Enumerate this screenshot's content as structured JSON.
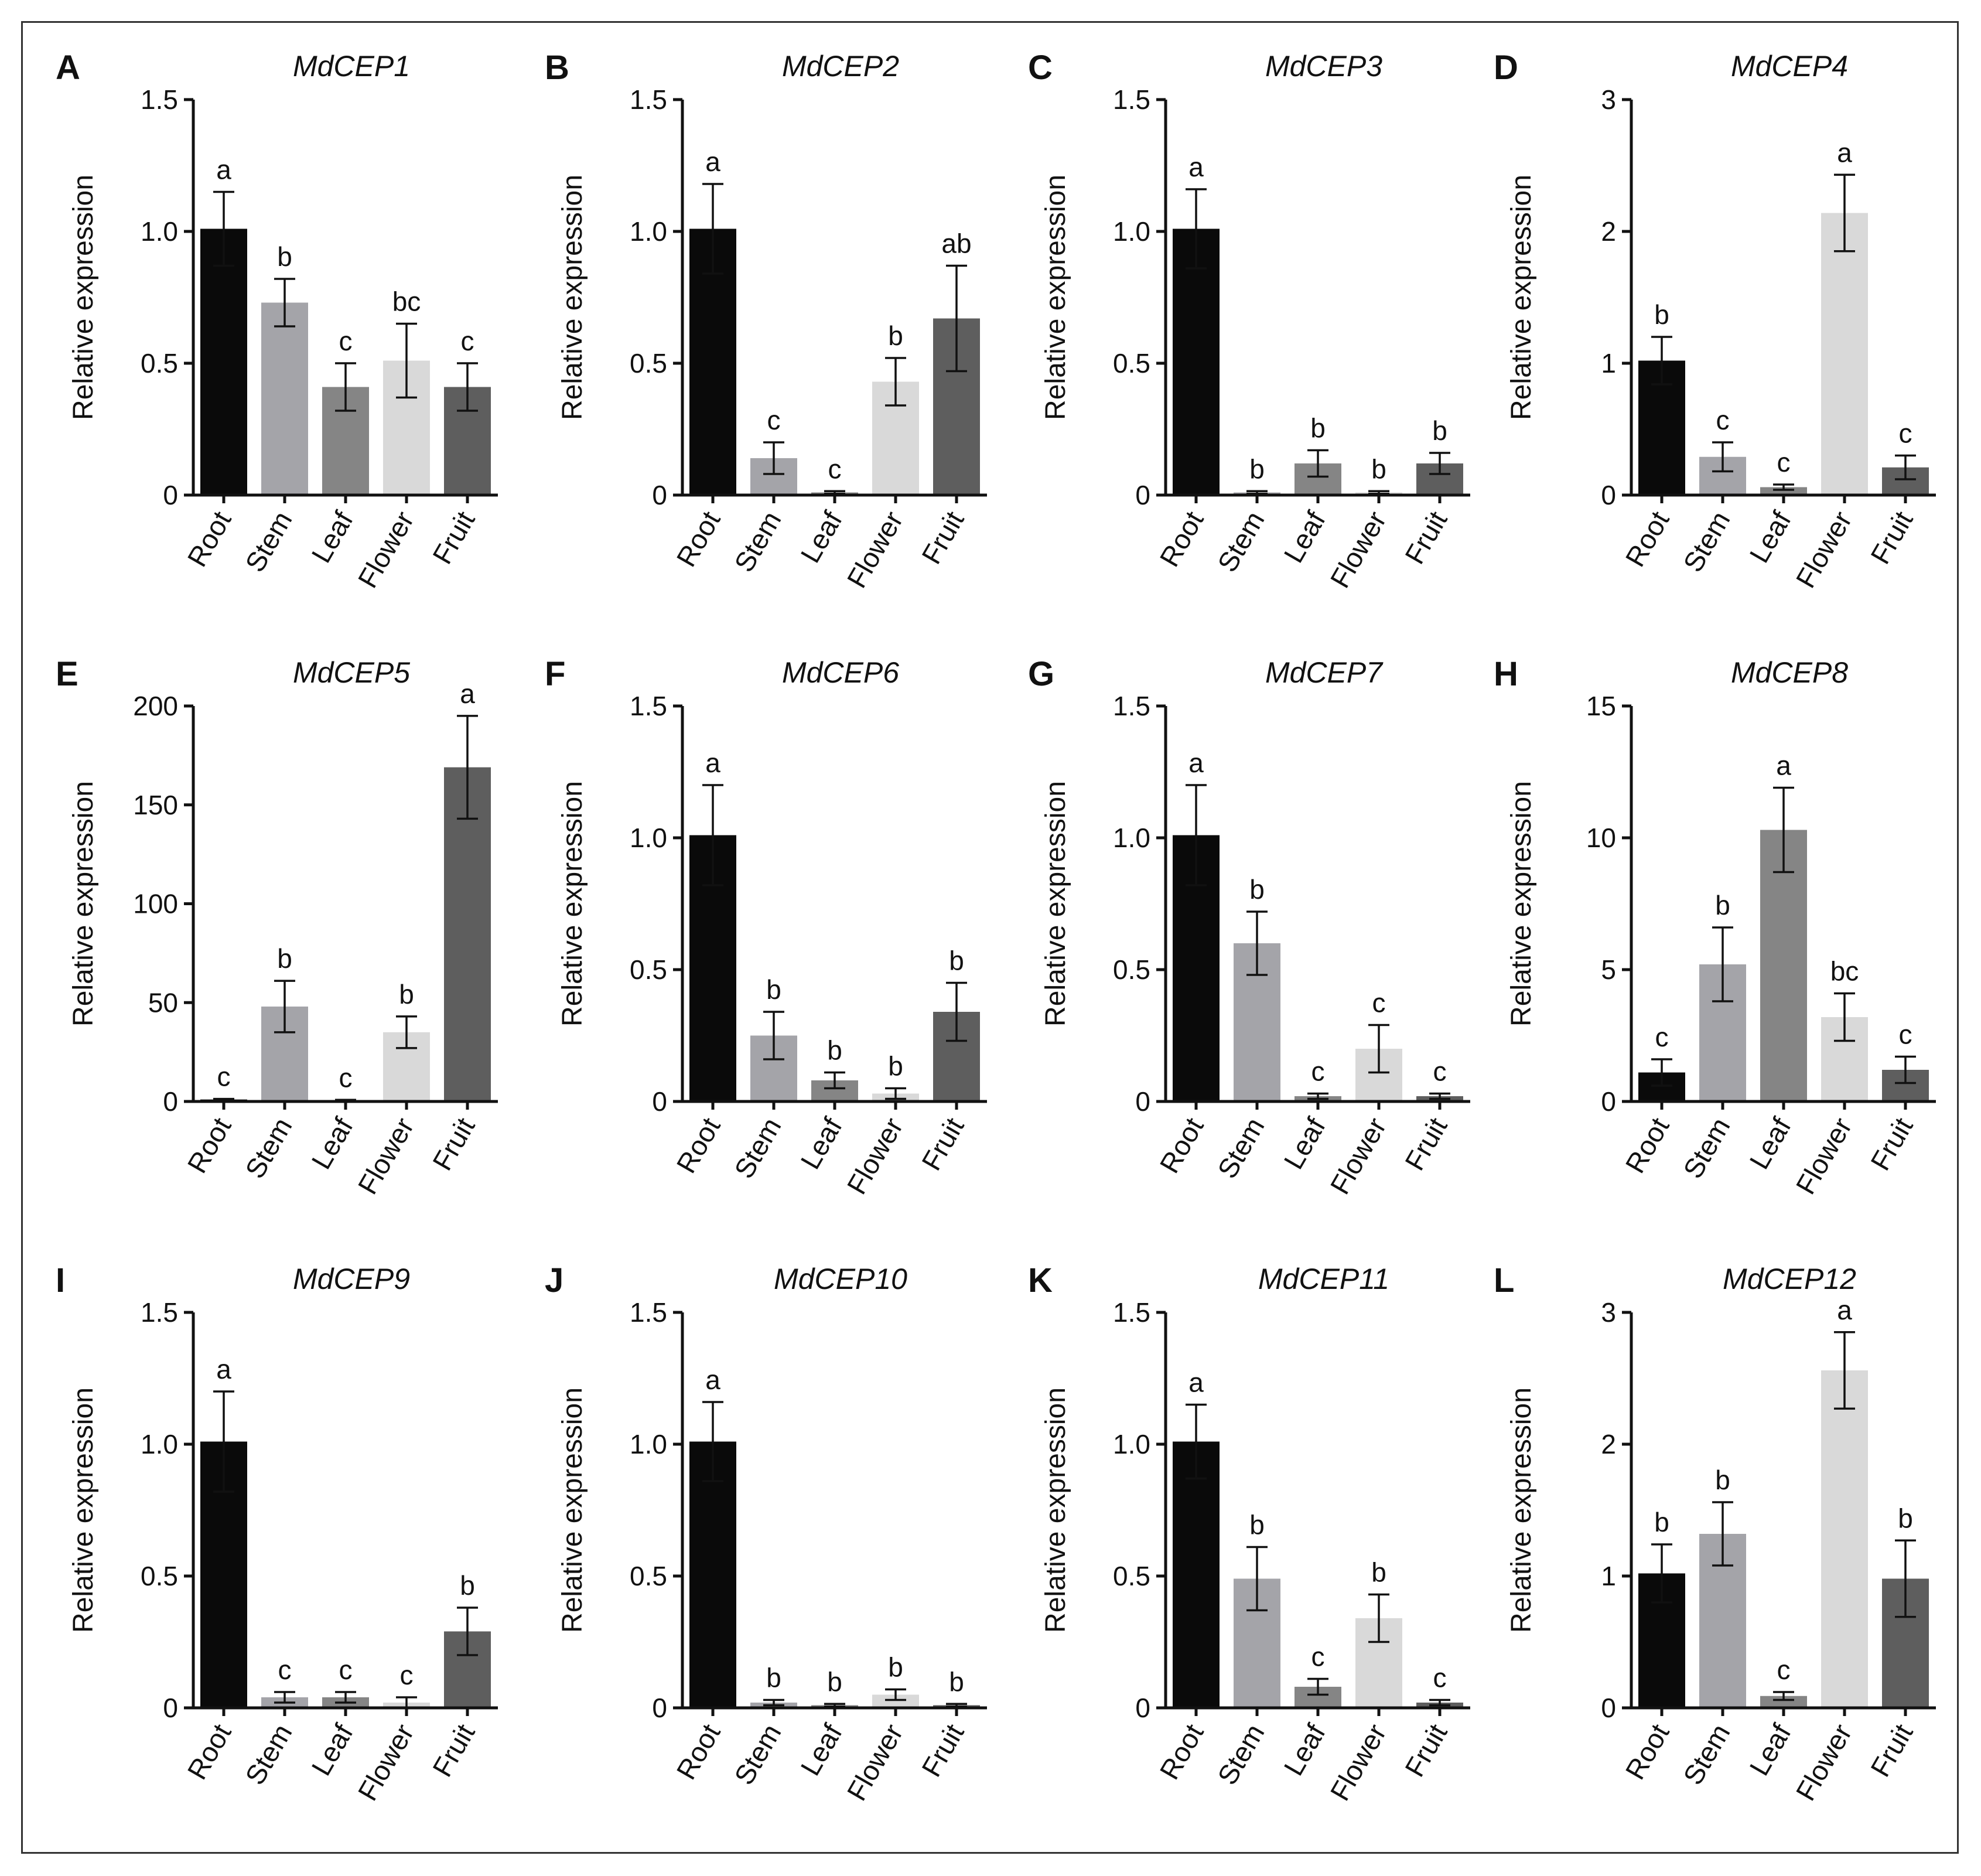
{
  "figure": {
    "category_colors": [
      "#0a0a0a",
      "#a4a4a9",
      "#858585",
      "#d9d9d9",
      "#5e5e5e"
    ]
  },
  "chart_data": [
    {
      "panel": "A",
      "type": "bar",
      "title": "MdCEP1",
      "ylabel": "Relative expression",
      "categories": [
        "Root",
        "Stem",
        "Leaf",
        "Flower",
        "Fruit"
      ],
      "values": [
        1.01,
        0.73,
        0.41,
        0.51,
        0.41
      ],
      "errors": [
        0.14,
        0.09,
        0.09,
        0.14,
        0.09
      ],
      "significance": [
        "a",
        "b",
        "c",
        "bc",
        "c"
      ],
      "ylim": [
        0,
        1.5
      ],
      "yticks": [
        0,
        0.5,
        1.0,
        1.5
      ],
      "ytick_labels": [
        "0",
        "0.5",
        "1.0",
        "1.5"
      ]
    },
    {
      "panel": "B",
      "type": "bar",
      "title": "MdCEP2",
      "ylabel": "Relative expression",
      "categories": [
        "Root",
        "Stem",
        "Leaf",
        "Flower",
        "Fruit"
      ],
      "values": [
        1.01,
        0.14,
        0.01,
        0.43,
        0.67
      ],
      "errors": [
        0.17,
        0.06,
        0.005,
        0.09,
        0.2
      ],
      "significance": [
        "a",
        "c",
        "c",
        "b",
        "ab"
      ],
      "ylim": [
        0,
        1.5
      ],
      "yticks": [
        0,
        0.5,
        1.0,
        1.5
      ],
      "ytick_labels": [
        "0",
        "0.5",
        "1.0",
        "1.5"
      ]
    },
    {
      "panel": "C",
      "type": "bar",
      "title": "MdCEP3",
      "ylabel": "Relative expression",
      "categories": [
        "Root",
        "Stem",
        "Leaf",
        "Flower",
        "Fruit"
      ],
      "values": [
        1.01,
        0.01,
        0.12,
        0.01,
        0.12
      ],
      "errors": [
        0.15,
        0.005,
        0.05,
        0.005,
        0.04
      ],
      "significance": [
        "a",
        "b",
        "b",
        "b",
        "b"
      ],
      "ylim": [
        0,
        1.5
      ],
      "yticks": [
        0,
        0.5,
        1.0,
        1.5
      ],
      "ytick_labels": [
        "0",
        "0.5",
        "1.0",
        "1.5"
      ]
    },
    {
      "panel": "D",
      "type": "bar",
      "title": "MdCEP4",
      "ylabel": "Relative expression",
      "categories": [
        "Root",
        "Stem",
        "Leaf",
        "Flower",
        "Fruit"
      ],
      "values": [
        1.02,
        0.29,
        0.06,
        2.14,
        0.21
      ],
      "errors": [
        0.18,
        0.11,
        0.02,
        0.29,
        0.09
      ],
      "significance": [
        "b",
        "c",
        "c",
        "a",
        "c"
      ],
      "ylim": [
        0,
        3
      ],
      "yticks": [
        0,
        1,
        2,
        3
      ],
      "ytick_labels": [
        "0",
        "1",
        "2",
        "3"
      ]
    },
    {
      "panel": "E",
      "type": "bar",
      "title": "MdCEP5",
      "ylabel": "Relative expression",
      "categories": [
        "Root",
        "Stem",
        "Leaf",
        "Flower",
        "Fruit"
      ],
      "values": [
        1.0,
        48.0,
        0.5,
        35.0,
        169.0
      ],
      "errors": [
        0.3,
        13.0,
        0.3,
        8.0,
        26.0
      ],
      "significance": [
        "c",
        "b",
        "c",
        "b",
        "a"
      ],
      "ylim": [
        0,
        200
      ],
      "yticks": [
        0,
        50,
        100,
        150,
        200
      ],
      "ytick_labels": [
        "0",
        "50",
        "100",
        "150",
        "200"
      ]
    },
    {
      "panel": "F",
      "type": "bar",
      "title": "MdCEP6",
      "ylabel": "Relative expression",
      "categories": [
        "Root",
        "Stem",
        "Leaf",
        "Flower",
        "Fruit"
      ],
      "values": [
        1.01,
        0.25,
        0.08,
        0.03,
        0.34
      ],
      "errors": [
        0.19,
        0.09,
        0.03,
        0.02,
        0.11
      ],
      "significance": [
        "a",
        "b",
        "b",
        "b",
        "b"
      ],
      "ylim": [
        0,
        1.5
      ],
      "yticks": [
        0,
        0.5,
        1.0,
        1.5
      ],
      "ytick_labels": [
        "0",
        "0.5",
        "1.0",
        "1.5"
      ]
    },
    {
      "panel": "G",
      "type": "bar",
      "title": "MdCEP7",
      "ylabel": "Relative expression",
      "categories": [
        "Root",
        "Stem",
        "Leaf",
        "Flower",
        "Fruit"
      ],
      "values": [
        1.01,
        0.6,
        0.02,
        0.2,
        0.02
      ],
      "errors": [
        0.19,
        0.12,
        0.01,
        0.09,
        0.01
      ],
      "significance": [
        "a",
        "b",
        "c",
        "c",
        "c"
      ],
      "ylim": [
        0,
        1.5
      ],
      "yticks": [
        0,
        0.5,
        1.0,
        1.5
      ],
      "ytick_labels": [
        "0",
        "0.5",
        "1.0",
        "1.5"
      ]
    },
    {
      "panel": "H",
      "type": "bar",
      "title": "MdCEP8",
      "ylabel": "Relative expression",
      "categories": [
        "Root",
        "Stem",
        "Leaf",
        "Flower",
        "Fruit"
      ],
      "values": [
        1.1,
        5.2,
        10.3,
        3.2,
        1.2
      ],
      "errors": [
        0.5,
        1.4,
        1.6,
        0.9,
        0.5
      ],
      "significance": [
        "c",
        "b",
        "a",
        "bc",
        "c"
      ],
      "ylim": [
        0,
        15
      ],
      "yticks": [
        0,
        5,
        10,
        15
      ],
      "ytick_labels": [
        "0",
        "5",
        "10",
        "15"
      ]
    },
    {
      "panel": "I",
      "type": "bar",
      "title": "MdCEP9",
      "ylabel": "Relative expression",
      "categories": [
        "Root",
        "Stem",
        "Leaf",
        "Flower",
        "Fruit"
      ],
      "values": [
        1.01,
        0.04,
        0.04,
        0.02,
        0.29
      ],
      "errors": [
        0.19,
        0.02,
        0.02,
        0.02,
        0.09
      ],
      "significance": [
        "a",
        "c",
        "c",
        "c",
        "b"
      ],
      "ylim": [
        0,
        1.5
      ],
      "yticks": [
        0,
        0.5,
        1.0,
        1.5
      ],
      "ytick_labels": [
        "0",
        "0.5",
        "1.0",
        "1.5"
      ]
    },
    {
      "panel": "J",
      "type": "bar",
      "title": "MdCEP10",
      "ylabel": "Relative expression",
      "categories": [
        "Root",
        "Stem",
        "Leaf",
        "Flower",
        "Fruit"
      ],
      "values": [
        1.01,
        0.02,
        0.01,
        0.05,
        0.01
      ],
      "errors": [
        0.15,
        0.01,
        0.005,
        0.02,
        0.005
      ],
      "significance": [
        "a",
        "b",
        "b",
        "b",
        "b"
      ],
      "ylim": [
        0,
        1.5
      ],
      "yticks": [
        0,
        0.5,
        1.0,
        1.5
      ],
      "ytick_labels": [
        "0",
        "0.5",
        "1.0",
        "1.5"
      ]
    },
    {
      "panel": "K",
      "type": "bar",
      "title": "MdCEP11",
      "ylabel": "Relative expression",
      "categories": [
        "Root",
        "Stem",
        "Leaf",
        "Flower",
        "Fruit"
      ],
      "values": [
        1.01,
        0.49,
        0.08,
        0.34,
        0.02
      ],
      "errors": [
        0.14,
        0.12,
        0.03,
        0.09,
        0.01
      ],
      "significance": [
        "a",
        "b",
        "c",
        "b",
        "c"
      ],
      "ylim": [
        0,
        1.5
      ],
      "yticks": [
        0,
        0.5,
        1.0,
        1.5
      ],
      "ytick_labels": [
        "0",
        "0.5",
        "1.0",
        "1.5"
      ]
    },
    {
      "panel": "L",
      "type": "bar",
      "title": "MdCEP12",
      "ylabel": "Relative expression",
      "categories": [
        "Root",
        "Stem",
        "Leaf",
        "Flower",
        "Fruit"
      ],
      "values": [
        1.02,
        1.32,
        0.09,
        2.56,
        0.98
      ],
      "errors": [
        0.22,
        0.24,
        0.03,
        0.29,
        0.29
      ],
      "significance": [
        "b",
        "b",
        "c",
        "a",
        "b"
      ],
      "ylim": [
        0,
        3
      ],
      "yticks": [
        0,
        1,
        2,
        3
      ],
      "ytick_labels": [
        "0",
        "1",
        "2",
        "3"
      ]
    }
  ]
}
